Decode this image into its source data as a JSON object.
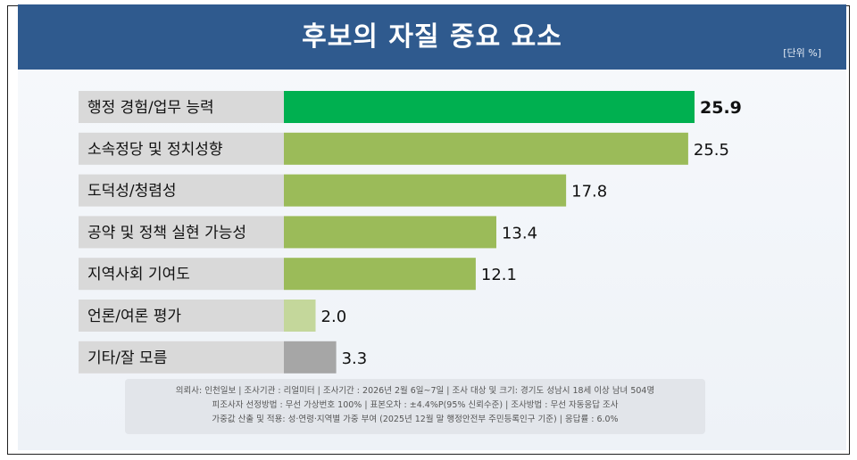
{
  "header": {
    "title": "후보의 자질 중요 요소",
    "unit": "[단위 %]"
  },
  "chart_data": {
    "type": "bar",
    "orientation": "horizontal",
    "categories": [
      "행정 경험/업무 능력",
      "소속정당 및 정치성향",
      "도덕성/청렴성",
      "공약 및 정책 실현 가능성",
      "지역사회 기여도",
      "언론/여론 평가",
      "기타/잘 모름"
    ],
    "values": [
      25.9,
      25.5,
      17.8,
      13.4,
      12.1,
      2.0,
      3.3
    ],
    "value_labels": [
      "25.9",
      "25.5",
      "17.8",
      "13.4",
      "12.1",
      "2.0",
      "3.3"
    ],
    "colors": [
      "#00b050",
      "#9bbb59",
      "#9bbb59",
      "#9bbb59",
      "#9bbb59",
      "#c4d79b",
      "#a6a6a6"
    ],
    "highlight_index": 0,
    "xlim": [
      0,
      25.9
    ],
    "grid": false,
    "legend": "none"
  },
  "footer": {
    "line1": "의뢰사: 인천일보 | 조사기관 : 리얼미터  | 조사기간 : 2026년 2월 6일~7일 | 조사 대상 및 크기: 경기도 성남시 18세 이상 남녀 504명",
    "line2": "피조사자 선정방법 : 무선 가상번호 100% | 표본오차 : ±4.4%P(95% 신뢰수준) | 조사방법 : 무선 자동응답 조사",
    "line3": "가중값 산출 및 적용: 성·연령·지역별 가중 부여 (2025년 12월 말 행정안전부 주민등록인구 기준) | 응답률 : 6.0%"
  }
}
